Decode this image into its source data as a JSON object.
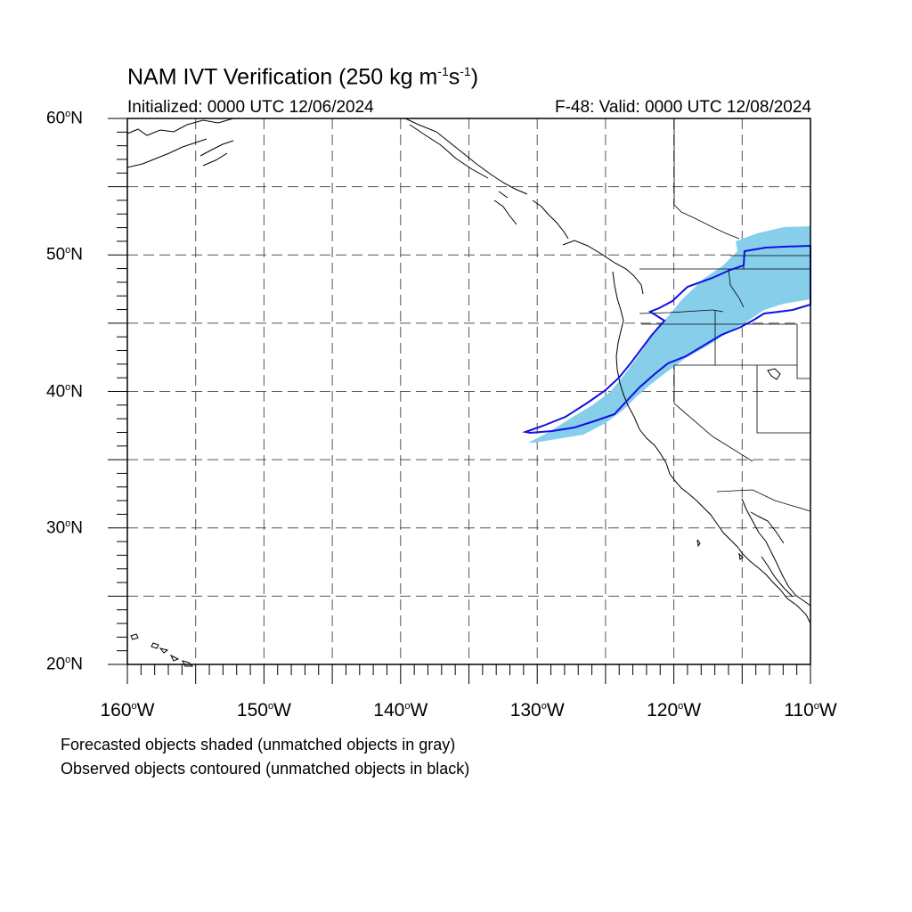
{
  "title": {
    "main": "NAM IVT Verification (250 kg m",
    "exp1": "-1",
    "mid": "s",
    "exp2": "-1",
    "end": ")"
  },
  "subtitle_left": "Initialized: 0000 UTC 12/06/2024",
  "subtitle_right": "F-48: Valid: 0000 UTC 12/08/2024",
  "caption_forecast": "Forecasted objects shaded (unmatched objects in gray)",
  "caption_observed": "Observed objects contoured (unmatched objects in black)",
  "lat_labels": [
    {
      "value": 60,
      "deg": "60",
      "hem": "N"
    },
    {
      "value": 50,
      "deg": "50",
      "hem": "N"
    },
    {
      "value": 40,
      "deg": "40",
      "hem": "N"
    },
    {
      "value": 30,
      "deg": "30",
      "hem": "N"
    },
    {
      "value": 20,
      "deg": "20",
      "hem": "N"
    }
  ],
  "lon_labels": [
    {
      "value": -160,
      "deg": "160",
      "hem": "W"
    },
    {
      "value": -150,
      "deg": "150",
      "hem": "W"
    },
    {
      "value": -140,
      "deg": "140",
      "hem": "W"
    },
    {
      "value": -130,
      "deg": "130",
      "hem": "W"
    },
    {
      "value": -120,
      "deg": "120",
      "hem": "W"
    },
    {
      "value": -110,
      "deg": "110",
      "hem": "W"
    }
  ],
  "colors": {
    "forecast_fill": "#87ceeb",
    "observed_contour": "#1010e0",
    "grid": "#555555",
    "coast": "#000000"
  }
}
